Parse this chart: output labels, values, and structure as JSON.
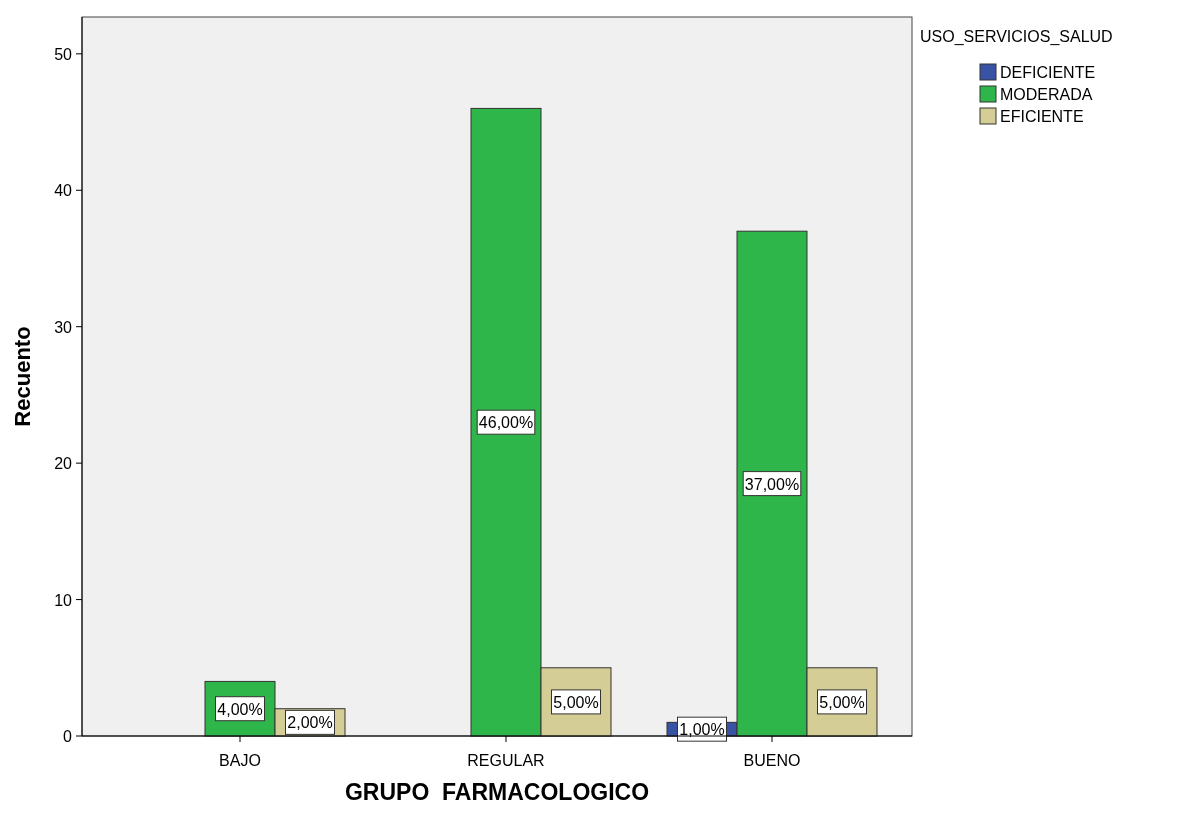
{
  "chart_data": {
    "type": "bar",
    "xlabel": "GRUPO  FARMACOLOGICO",
    "ylabel": "Recuento",
    "legend_title": "USO_SERVICIOS_SALUD",
    "legend": "top right",
    "grid": false,
    "categories": [
      "BAJO",
      "REGULAR",
      "BUENO"
    ],
    "ylim": [
      0,
      52.7
    ],
    "yticks": [
      0,
      10,
      20,
      30,
      40,
      50
    ],
    "series": [
      {
        "name": "DEFICIENTE",
        "color": "#3953a4",
        "values": [
          0,
          0,
          1
        ],
        "value_labels": [
          null,
          null,
          "1,00%"
        ]
      },
      {
        "name": "MODERADA",
        "color": "#2fb64a",
        "values": [
          4,
          46,
          37
        ],
        "value_labels": [
          "4,00%",
          "46,00%",
          "37,00%"
        ]
      },
      {
        "name": "EFICIENTE",
        "color": "#d4ce96",
        "values": [
          2,
          5,
          5
        ],
        "value_labels": [
          "2,00%",
          "5,00%",
          "5,00%"
        ]
      }
    ]
  }
}
